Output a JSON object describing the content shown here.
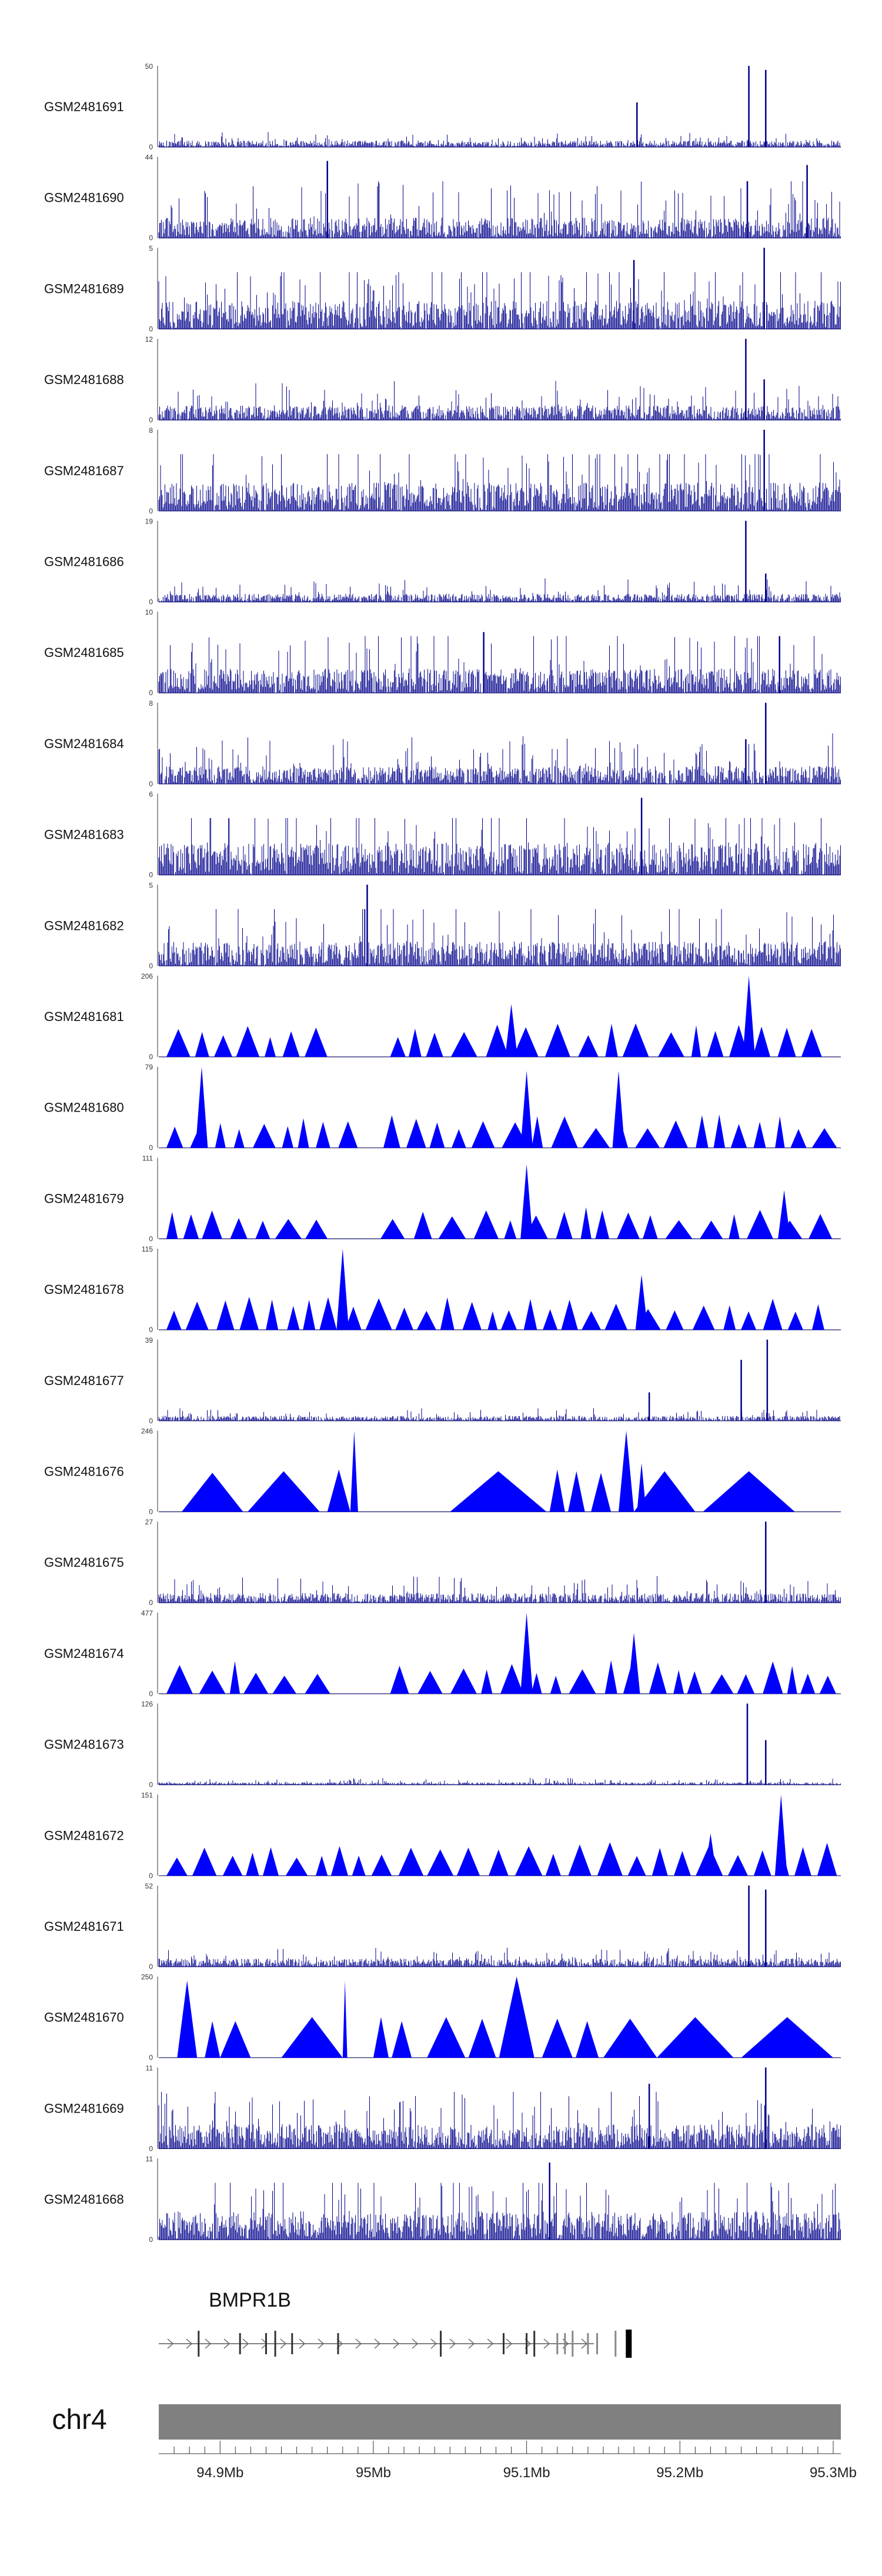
{
  "chart_data": {
    "type": "genome_track_plot",
    "chromosome": "chr4",
    "gene": "BMPR1B",
    "x_range_mb": [
      94.86,
      95.305
    ],
    "x_ticks": [
      {
        "value": 94.9,
        "label": "94.9Mb"
      },
      {
        "value": 95.0,
        "label": "95Mb"
      },
      {
        "value": 95.1,
        "label": "95.1Mb"
      },
      {
        "value": 95.2,
        "label": "95.2Mb"
      },
      {
        "value": 95.3,
        "label": "95.3Mb"
      }
    ],
    "tracks": [
      {
        "name": "GSM2481691",
        "ymin_label": "0",
        "ymax_label": "50",
        "ymax": 50,
        "style": "dense",
        "base": 0.08,
        "noise": 0.08,
        "peaks": [
          {
            "x": 95.172,
            "v": 0.55
          },
          {
            "x": 95.245,
            "v": 1.0
          },
          {
            "x": 95.256,
            "v": 0.95
          }
        ]
      },
      {
        "name": "GSM2481690",
        "ymin_label": "0",
        "ymax_label": "44",
        "ymax": 44,
        "style": "dense",
        "base": 0.25,
        "noise": 0.4,
        "peaks": [
          {
            "x": 94.97,
            "v": 0.95
          },
          {
            "x": 95.244,
            "v": 0.7
          },
          {
            "x": 95.283,
            "v": 0.9
          }
        ]
      },
      {
        "name": "GSM2481689",
        "ymin_label": "0",
        "ymax_label": "5",
        "ymax": 5,
        "style": "dense",
        "base": 0.35,
        "noise": 0.5,
        "peaks": [
          {
            "x": 95.17,
            "v": 0.85
          },
          {
            "x": 95.255,
            "v": 1.0
          }
        ]
      },
      {
        "name": "GSM2481688",
        "ymin_label": "0",
        "ymax_label": "12",
        "ymax": 12,
        "style": "dense",
        "base": 0.18,
        "noise": 0.22,
        "peaks": [
          {
            "x": 95.243,
            "v": 1.0
          },
          {
            "x": 95.255,
            "v": 0.5
          }
        ]
      },
      {
        "name": "GSM2481687",
        "ymin_label": "0",
        "ymax_label": "8",
        "ymax": 8,
        "style": "dense",
        "base": 0.35,
        "noise": 0.55,
        "peaks": [
          {
            "x": 95.255,
            "v": 1.0
          }
        ]
      },
      {
        "name": "GSM2481686",
        "ymin_label": "0",
        "ymax_label": "19",
        "ymax": 19,
        "style": "dense",
        "base": 0.1,
        "noise": 0.15,
        "peaks": [
          {
            "x": 95.243,
            "v": 1.0
          },
          {
            "x": 95.256,
            "v": 0.35
          }
        ]
      },
      {
        "name": "GSM2481685",
        "ymin_label": "0",
        "ymax_label": "10",
        "ymax": 10,
        "style": "dense",
        "base": 0.3,
        "noise": 0.45,
        "peaks": [
          {
            "x": 95.072,
            "v": 0.75
          },
          {
            "x": 95.265,
            "v": 0.7
          }
        ]
      },
      {
        "name": "GSM2481684",
        "ymin_label": "0",
        "ymax_label": "8",
        "ymax": 8,
        "style": "dense",
        "base": 0.22,
        "noise": 0.3,
        "peaks": [
          {
            "x": 95.256,
            "v": 1.0
          },
          {
            "x": 95.243,
            "v": 0.55
          }
        ]
      },
      {
        "name": "GSM2481683",
        "ymin_label": "0",
        "ymax_label": "6",
        "ymax": 6,
        "style": "dense",
        "base": 0.4,
        "noise": 0.55,
        "peaks": [
          {
            "x": 95.175,
            "v": 0.95
          }
        ]
      },
      {
        "name": "GSM2481682",
        "ymin_label": "0",
        "ymax_label": "5",
        "ymax": 5,
        "style": "dense",
        "base": 0.3,
        "noise": 0.45,
        "peaks": [
          {
            "x": 94.996,
            "v": 1.0
          }
        ]
      },
      {
        "name": "GSM2481681",
        "ymin_label": "0",
        "ymax_label": "206",
        "ymax": 206,
        "style": "tri",
        "seed": 11,
        "gaps": [
          [
            94.975,
            95.0
          ]
        ],
        "peaks": [
          {
            "x": 95.245,
            "v": 1.0
          },
          {
            "x": 95.09,
            "v": 0.65
          }
        ]
      },
      {
        "name": "GSM2481680",
        "ymin_label": "0",
        "ymax_label": "79",
        "ymax": 79,
        "style": "tri",
        "seed": 23,
        "gaps": [
          [
            94.99,
            95.0
          ]
        ],
        "peaks": [
          {
            "x": 94.888,
            "v": 1.0
          },
          {
            "x": 95.16,
            "v": 0.95
          },
          {
            "x": 95.1,
            "v": 0.95
          }
        ]
      },
      {
        "name": "GSM2481679",
        "ymin_label": "0",
        "ymax_label": "111",
        "ymax": 111,
        "style": "tri",
        "seed": 37,
        "gaps": [
          [
            94.98,
            95.0
          ]
        ],
        "peaks": [
          {
            "x": 95.1,
            "v": 0.92
          },
          {
            "x": 95.268,
            "v": 0.6
          }
        ]
      },
      {
        "name": "GSM2481678",
        "ymin_label": "0",
        "ymax_label": "115",
        "ymax": 115,
        "style": "tri",
        "seed": 41,
        "gaps": [],
        "peaks": [
          {
            "x": 94.98,
            "v": 1.0
          },
          {
            "x": 95.175,
            "v": 0.68
          }
        ]
      },
      {
        "name": "GSM2481677",
        "ymin_label": "0",
        "ymax_label": "39",
        "ymax": 39,
        "style": "dense",
        "base": 0.06,
        "noise": 0.08,
        "peaks": [
          {
            "x": 95.257,
            "v": 1.0
          },
          {
            "x": 95.24,
            "v": 0.75
          },
          {
            "x": 95.18,
            "v": 0.35
          }
        ]
      },
      {
        "name": "GSM2481676",
        "ymin_label": "0",
        "ymax_label": "246",
        "ymax": 246,
        "style": "tri_big",
        "segments": [
          [
            94.875,
            94.915,
            0.48
          ],
          [
            94.918,
            94.965,
            0.5
          ],
          [
            94.97,
            94.985,
            0.52
          ],
          [
            94.985,
            94.99,
            1.0
          ],
          [
            95.05,
            95.113,
            0.5
          ],
          [
            95.115,
            95.125,
            0.52
          ],
          [
            95.127,
            95.138,
            0.5
          ],
          [
            95.142,
            95.155,
            0.48
          ],
          [
            95.16,
            95.17,
            1.0
          ],
          [
            95.17,
            95.21,
            0.5
          ],
          [
            95.215,
            95.275,
            0.5
          ],
          [
            95.172,
            95.178,
            0.6
          ]
        ]
      },
      {
        "name": "GSM2481675",
        "ymin_label": "0",
        "ymax_label": "27",
        "ymax": 27,
        "style": "dense",
        "base": 0.12,
        "noise": 0.16,
        "peaks": [
          {
            "x": 95.256,
            "v": 1.0
          }
        ]
      },
      {
        "name": "GSM2481674",
        "ymin_label": "0",
        "ymax_label": "477",
        "ymax": 477,
        "style": "tri",
        "seed": 53,
        "gaps": [
          [
            94.985,
            95.005
          ]
        ],
        "peaks": [
          {
            "x": 95.1,
            "v": 1.0
          },
          {
            "x": 95.17,
            "v": 0.75
          }
        ]
      },
      {
        "name": "GSM2481673",
        "ymin_label": "0",
        "ymax_label": "126",
        "ymax": 126,
        "style": "dense",
        "base": 0.03,
        "noise": 0.04,
        "peaks": [
          {
            "x": 95.244,
            "v": 1.0
          },
          {
            "x": 95.256,
            "v": 0.55
          }
        ]
      },
      {
        "name": "GSM2481672",
        "ymin_label": "0",
        "ymax_label": "151",
        "ymax": 151,
        "style": "tri",
        "seed": 67,
        "gaps": [],
        "peaks": [
          {
            "x": 95.266,
            "v": 1.0
          },
          {
            "x": 95.22,
            "v": 0.52
          }
        ]
      },
      {
        "name": "GSM2481671",
        "ymin_label": "0",
        "ymax_label": "52",
        "ymax": 52,
        "style": "dense",
        "base": 0.1,
        "noise": 0.12,
        "peaks": [
          {
            "x": 95.245,
            "v": 1.0
          },
          {
            "x": 95.256,
            "v": 0.95
          }
        ]
      },
      {
        "name": "GSM2481670",
        "ymin_label": "0",
        "ymax_label": "250",
        "ymax": 250,
        "style": "tri_big",
        "segments": [
          [
            94.872,
            94.885,
            0.95
          ],
          [
            94.89,
            94.9,
            0.45
          ],
          [
            94.9,
            94.92,
            0.45
          ],
          [
            94.94,
            94.98,
            0.5
          ],
          [
            94.98,
            94.983,
            0.95
          ],
          [
            95.0,
            95.01,
            0.5
          ],
          [
            95.012,
            95.025,
            0.45
          ],
          [
            95.035,
            95.06,
            0.5
          ],
          [
            95.062,
            95.08,
            0.48
          ],
          [
            95.082,
            95.105,
            1.0
          ],
          [
            95.11,
            95.13,
            0.48
          ],
          [
            95.132,
            95.147,
            0.45
          ],
          [
            95.15,
            95.185,
            0.48
          ],
          [
            95.185,
            95.235,
            0.5
          ],
          [
            95.24,
            95.3,
            0.5
          ]
        ]
      },
      {
        "name": "GSM2481669",
        "ymin_label": "0",
        "ymax_label": "11",
        "ymax": 11,
        "style": "dense",
        "base": 0.3,
        "noise": 0.4,
        "peaks": [
          {
            "x": 95.256,
            "v": 1.0
          },
          {
            "x": 95.18,
            "v": 0.8
          }
        ]
      },
      {
        "name": "GSM2481668",
        "ymin_label": "0",
        "ymax_label": "11",
        "ymax": 11,
        "style": "dense",
        "base": 0.35,
        "noise": 0.5,
        "peaks": [
          {
            "x": 95.115,
            "v": 0.95
          }
        ]
      }
    ],
    "gene_model": {
      "strand": "+",
      "exons_mb": [
        94.886,
        94.913,
        94.93,
        94.936,
        94.947,
        94.977,
        95.044,
        95.085,
        95.1,
        95.105,
        95.12,
        95.125,
        95.13,
        95.14,
        95.146,
        95.158,
        95.167
      ]
    },
    "colors": {
      "signal": "#0000ff",
      "signal_dense": "#00008b",
      "ideogram": "#808080"
    }
  }
}
